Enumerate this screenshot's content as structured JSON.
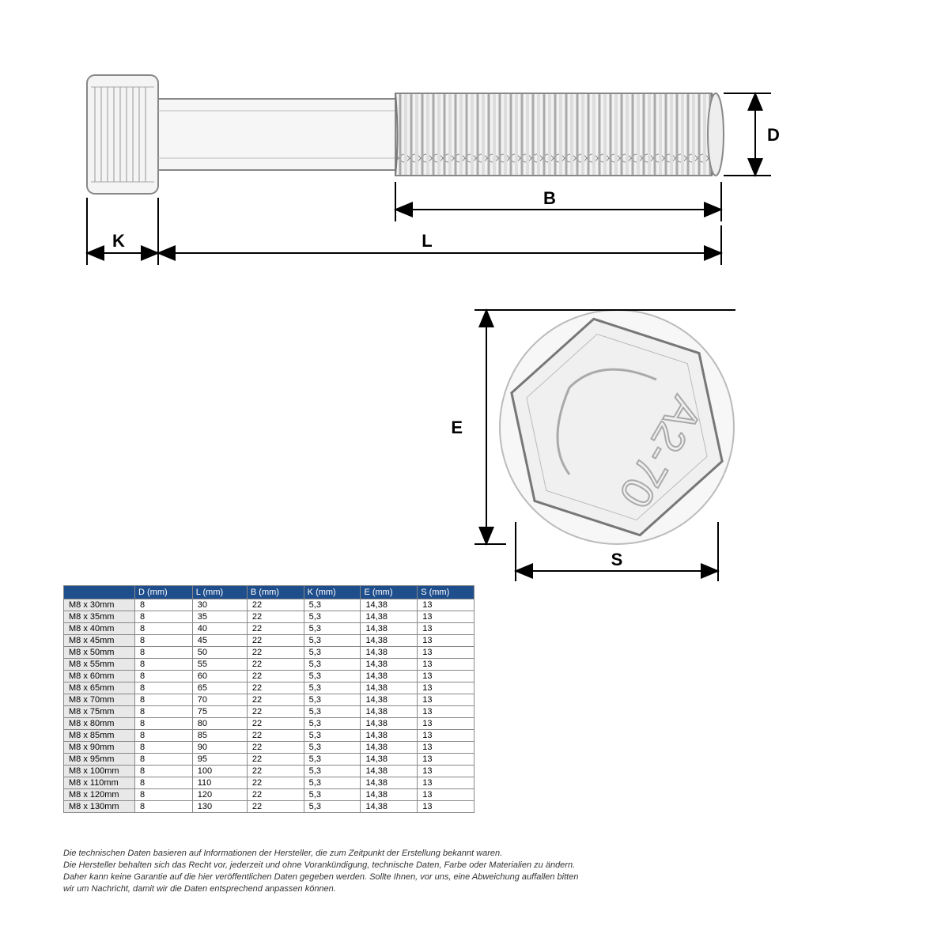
{
  "diagram": {
    "labels": {
      "K": "K",
      "L": "L",
      "B": "B",
      "D": "D",
      "E": "E",
      "S": "S"
    },
    "head_marking": "A2-70",
    "colors": {
      "line": "#000000",
      "bolt_stroke": "#7a7a7a",
      "bolt_fill": "#f5f5f5",
      "shade": "#cccccc"
    }
  },
  "table": {
    "header_bg": "#1f4e8c",
    "header_fg": "#ffffff",
    "row_label_bg": "#e8e8e8",
    "columns": [
      "",
      "D (mm)",
      "L (mm)",
      "B (mm)",
      "K (mm)",
      "E (mm)",
      "S (mm)"
    ],
    "rows": [
      [
        "M8 x 30mm",
        "8",
        "30",
        "22",
        "5,3",
        "14,38",
        "13"
      ],
      [
        "M8 x 35mm",
        "8",
        "35",
        "22",
        "5,3",
        "14,38",
        "13"
      ],
      [
        "M8 x 40mm",
        "8",
        "40",
        "22",
        "5,3",
        "14,38",
        "13"
      ],
      [
        "M8 x 45mm",
        "8",
        "45",
        "22",
        "5,3",
        "14,38",
        "13"
      ],
      [
        "M8 x 50mm",
        "8",
        "50",
        "22",
        "5,3",
        "14,38",
        "13"
      ],
      [
        "M8 x 55mm",
        "8",
        "55",
        "22",
        "5,3",
        "14,38",
        "13"
      ],
      [
        "M8 x 60mm",
        "8",
        "60",
        "22",
        "5,3",
        "14,38",
        "13"
      ],
      [
        "M8 x 65mm",
        "8",
        "65",
        "22",
        "5,3",
        "14,38",
        "13"
      ],
      [
        "M8 x 70mm",
        "8",
        "70",
        "22",
        "5,3",
        "14,38",
        "13"
      ],
      [
        "M8 x 75mm",
        "8",
        "75",
        "22",
        "5,3",
        "14,38",
        "13"
      ],
      [
        "M8 x 80mm",
        "8",
        "80",
        "22",
        "5,3",
        "14,38",
        "13"
      ],
      [
        "M8 x 85mm",
        "8",
        "85",
        "22",
        "5,3",
        "14,38",
        "13"
      ],
      [
        "M8 x 90mm",
        "8",
        "90",
        "22",
        "5,3",
        "14,38",
        "13"
      ],
      [
        "M8 x 95mm",
        "8",
        "95",
        "22",
        "5,3",
        "14,38",
        "13"
      ],
      [
        "M8 x 100mm",
        "8",
        "100",
        "22",
        "5,3",
        "14,38",
        "13"
      ],
      [
        "M8 x 110mm",
        "8",
        "110",
        "22",
        "5,3",
        "14,38",
        "13"
      ],
      [
        "M8 x 120mm",
        "8",
        "120",
        "22",
        "5,3",
        "14,38",
        "13"
      ],
      [
        "M8 x 130mm",
        "8",
        "130",
        "22",
        "5,3",
        "14,38",
        "13"
      ]
    ]
  },
  "footnote": {
    "lines": [
      "Die technischen Daten basieren auf Informationen der Hersteller, die zum Zeitpunkt der Erstellung bekannt waren.",
      "Die Hersteller behalten sich das Recht vor, jederzeit und ohne Vorankündigung, technische Daten, Farbe oder Materialien zu ändern.",
      "Daher kann keine Garantie auf die hier veröffentlichen Daten gegeben werden. Sollte Ihnen, vor uns, eine Abweichung auffallen bitten",
      "wir um Nachricht, damit wir die Daten entsprechend anpassen können."
    ]
  }
}
